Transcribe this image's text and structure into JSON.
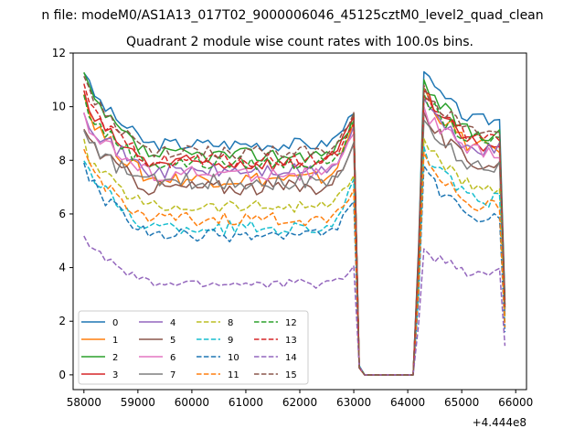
{
  "chart_data": {
    "type": "line",
    "title": "n file: modeM0/AS1A13_017T02_9000006046_45125cztM0_level2_quad_clean",
    "subtitle": "Quadrant 2 module wise count rates with 100.0s bins.",
    "xlabel": "",
    "ylabel": "",
    "x_offset_label": "+4.444e8",
    "xlim": [
      57800,
      66200
    ],
    "ylim": [
      -0.55,
      12.0
    ],
    "x_ticks": [
      58000,
      59000,
      60000,
      61000,
      62000,
      63000,
      64000,
      65000,
      66000
    ],
    "x_tick_labels": [
      "58000",
      "59000",
      "60000",
      "61000",
      "62000",
      "63000",
      "64000",
      "65000",
      "66000"
    ],
    "y_ticks": [
      0,
      2,
      4,
      6,
      8,
      10,
      12
    ],
    "y_tick_labels": [
      "0",
      "2",
      "4",
      "6",
      "8",
      "10",
      "12"
    ],
    "legend_position": "lower-left",
    "grid": false,
    "series": [
      {
        "name": "0",
        "color": "#1f77b4",
        "dash": "solid",
        "params": {
          "start": 11.4,
          "plateau": 8.6,
          "preend": 9.9,
          "peak2": 11.3,
          "mid2": 9.5,
          "end": 9.3,
          "noise": 0.25
        }
      },
      {
        "name": "1",
        "color": "#ff7f0e",
        "dash": "solid",
        "params": {
          "start": 10.5,
          "plateau": 7.3,
          "preend": 9.5,
          "peak2": 10.7,
          "mid2": 8.5,
          "end": 8.2,
          "noise": 0.3
        }
      },
      {
        "name": "2",
        "color": "#2ca02c",
        "dash": "solid",
        "params": {
          "start": 11.2,
          "plateau": 8.2,
          "preend": 9.6,
          "peak2": 11.0,
          "mid2": 9.0,
          "end": 8.7,
          "noise": 0.28
        }
      },
      {
        "name": "3",
        "color": "#d62728",
        "dash": "solid",
        "params": {
          "start": 10.4,
          "plateau": 7.9,
          "preend": 9.7,
          "peak2": 10.6,
          "mid2": 8.6,
          "end": 8.2,
          "noise": 0.3
        }
      },
      {
        "name": "4",
        "color": "#9467bd",
        "dash": "solid",
        "params": {
          "start": 10.0,
          "plateau": 7.6,
          "preend": 9.2,
          "peak2": 10.3,
          "mid2": 8.4,
          "end": 8.0,
          "noise": 0.28
        }
      },
      {
        "name": "5",
        "color": "#8c564b",
        "dash": "solid",
        "params": {
          "start": 9.3,
          "plateau": 7.0,
          "preend": 8.8,
          "peak2": 9.8,
          "mid2": 7.9,
          "end": 7.5,
          "noise": 0.3
        }
      },
      {
        "name": "6",
        "color": "#e377c2",
        "dash": "solid",
        "params": {
          "start": 9.8,
          "plateau": 7.5,
          "preend": 9.0,
          "peak2": 10.0,
          "mid2": 8.3,
          "end": 7.8,
          "noise": 0.3
        }
      },
      {
        "name": "7",
        "color": "#7f7f7f",
        "dash": "solid",
        "params": {
          "start": 9.0,
          "plateau": 7.2,
          "preend": 8.5,
          "peak2": 9.5,
          "mid2": 7.8,
          "end": 7.3,
          "noise": 0.3
        }
      },
      {
        "name": "8",
        "color": "#bcbd22",
        "dash": "dashed",
        "params": {
          "start": 8.6,
          "plateau": 6.3,
          "preend": 7.5,
          "peak2": 8.8,
          "mid2": 7.0,
          "end": 6.6,
          "noise": 0.25
        }
      },
      {
        "name": "9",
        "color": "#17becf",
        "dash": "dashed",
        "params": {
          "start": 8.2,
          "plateau": 5.5,
          "preend": 7.2,
          "peak2": 8.5,
          "mid2": 6.5,
          "end": 6.0,
          "noise": 0.28
        }
      },
      {
        "name": "10",
        "color": "#1f77b4",
        "dash": "dashed",
        "params": {
          "start": 8.0,
          "plateau": 5.2,
          "preend": 6.6,
          "peak2": 7.8,
          "mid2": 5.8,
          "end": 5.3,
          "noise": 0.25
        }
      },
      {
        "name": "11",
        "color": "#ff7f0e",
        "dash": "dashed",
        "params": {
          "start": 8.4,
          "plateau": 5.8,
          "preend": 6.9,
          "peak2": 8.3,
          "mid2": 6.3,
          "end": 5.9,
          "noise": 0.25
        }
      },
      {
        "name": "12",
        "color": "#2ca02c",
        "dash": "dashed",
        "params": {
          "start": 10.3,
          "plateau": 7.9,
          "preend": 9.3,
          "peak2": 10.5,
          "mid2": 8.7,
          "end": 8.4,
          "noise": 0.28
        }
      },
      {
        "name": "13",
        "color": "#d62728",
        "dash": "dashed",
        "params": {
          "start": 10.6,
          "plateau": 8.0,
          "preend": 9.4,
          "peak2": 10.4,
          "mid2": 8.8,
          "end": 8.5,
          "noise": 0.28
        }
      },
      {
        "name": "14",
        "color": "#9467bd",
        "dash": "dashed",
        "params": {
          "start": 5.3,
          "plateau": 3.4,
          "preend": 4.0,
          "peak2": 4.7,
          "mid2": 3.8,
          "end": 3.6,
          "noise": 0.18
        }
      },
      {
        "name": "15",
        "color": "#8c564b",
        "dash": "dashed",
        "params": {
          "start": 11.2,
          "plateau": 8.3,
          "preend": 9.9,
          "peak2": 10.8,
          "mid2": 9.0,
          "end": 8.7,
          "noise": 0.25
        }
      }
    ]
  }
}
